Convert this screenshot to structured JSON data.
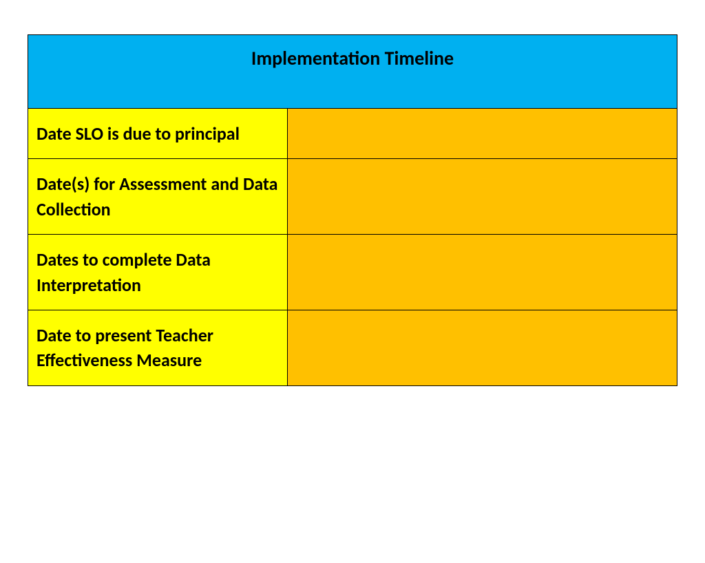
{
  "table": {
    "type": "table",
    "title": "Implementation Timeline",
    "header_bg_color": "#00b0f0",
    "label_bg_color": "#ffff00",
    "value_bg_color": "#ffc000",
    "border_color": "#000000",
    "title_fontsize": 28,
    "label_fontsize": 26,
    "font_weight": "bold",
    "text_color": "#000000",
    "label_column_width_pct": 40,
    "value_column_width_pct": 60,
    "rows": [
      {
        "label": "Date SLO is due to principal",
        "value": ""
      },
      {
        "label": "Date(s) for Assessment and Data Collection",
        "value": ""
      },
      {
        "label": "Dates to complete Data Interpretation",
        "value": ""
      },
      {
        "label": "Date to present Teacher Effectiveness Measure",
        "value": ""
      }
    ]
  }
}
